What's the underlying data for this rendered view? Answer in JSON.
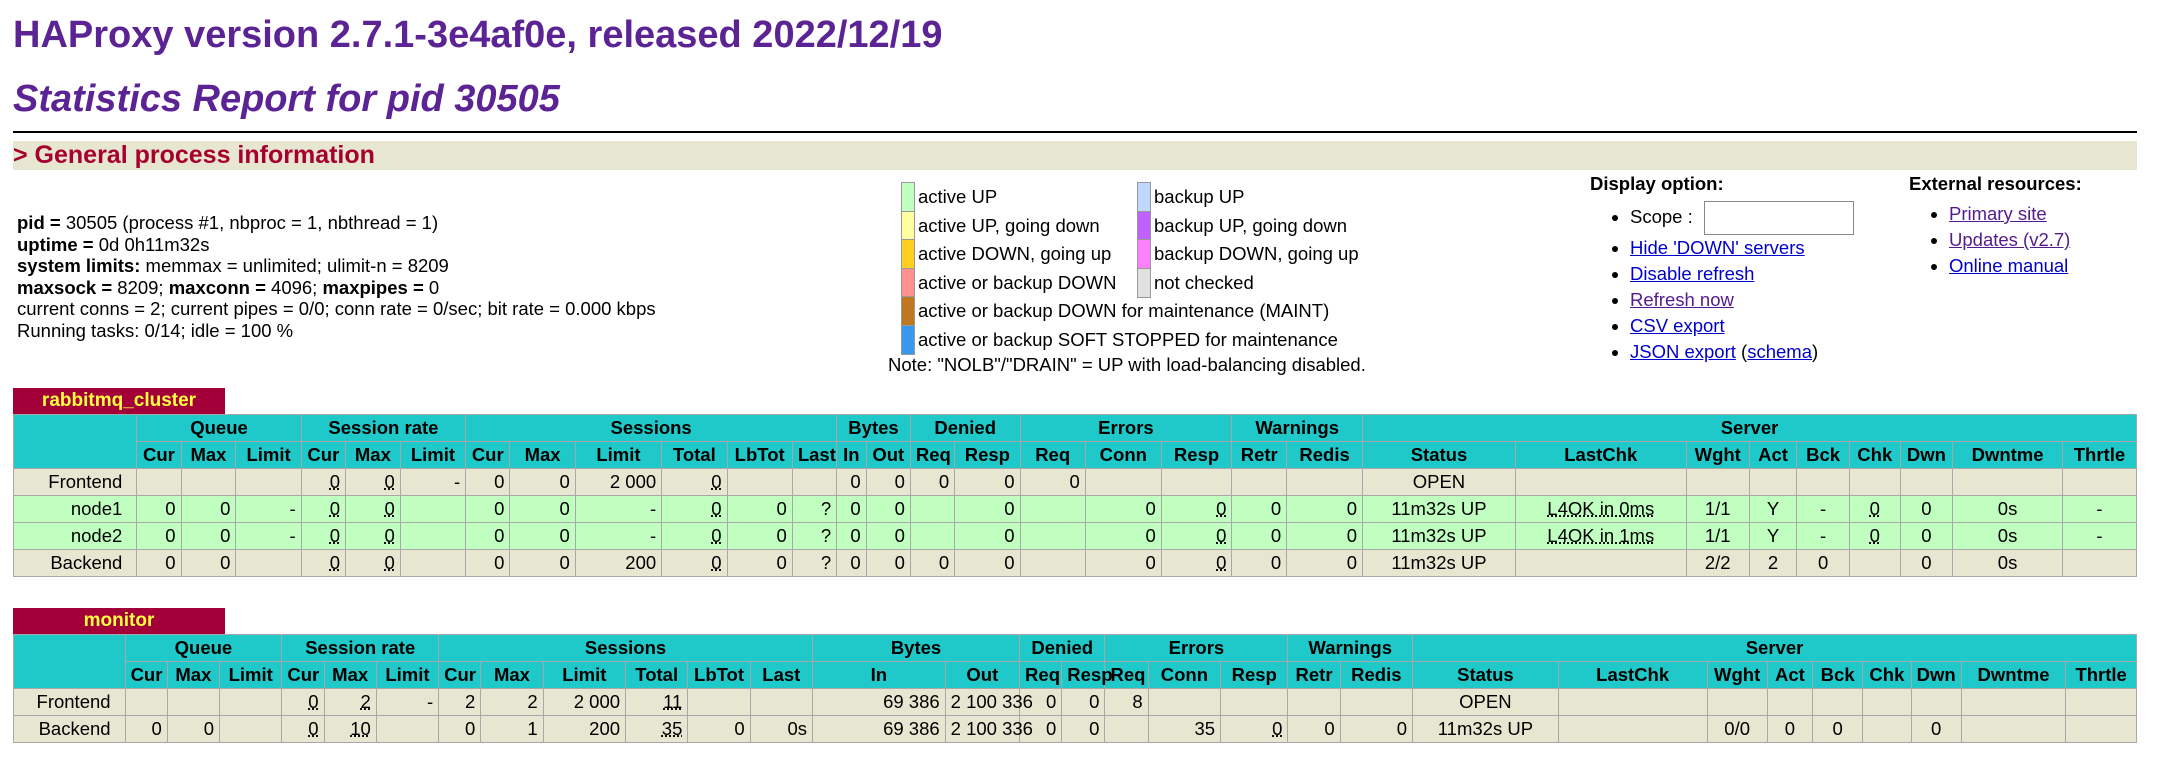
{
  "header": {
    "title": "HAProxy version 2.7.1-3e4af0e, released 2022/12/19",
    "subtitle": "Statistics Report for pid 30505",
    "section": "> General process information"
  },
  "info": {
    "pid_label": "pid = ",
    "pid_value": "30505 (process #1, nbproc = 1, nbthread = 1)",
    "uptime_label": "uptime = ",
    "uptime_value": "0d 0h11m32s",
    "syslim_label": "system limits:",
    "syslim_value": " memmax = unlimited; ulimit-n = 8209",
    "maxsock_label": "maxsock = ",
    "maxsock_value": "8209; ",
    "maxconn_label": "maxconn = ",
    "maxconn_value": "4096; ",
    "maxpipes_label": "maxpipes = ",
    "maxpipes_value": "0",
    "conns": "current conns = 2; current pipes = 0/0; conn rate = 0/sec; bit rate = 0.000 kbps",
    "tasks": "Running tasks: 0/14; idle = 100 %"
  },
  "legend": {
    "left": [
      {
        "label": "active UP",
        "color": "#c0ffc0"
      },
      {
        "label": "active UP, going down",
        "color": "#ffffa0"
      },
      {
        "label": "active DOWN, going up",
        "color": "#ffd020"
      },
      {
        "label": "active or backup DOWN",
        "color": "#ff9090"
      },
      {
        "label": "active or backup DOWN for maintenance (MAINT)",
        "color": "#c07820"
      },
      {
        "label": "active or backup SOFT STOPPED for maintenance",
        "color": "#3898f0"
      }
    ],
    "right": [
      {
        "label": "backup UP",
        "color": "#c0d8ff"
      },
      {
        "label": "backup UP, going down",
        "color": "#c060ff"
      },
      {
        "label": "backup DOWN, going up",
        "color": "#ff80ff"
      },
      {
        "label": "not checked",
        "color": "#e0e0e0"
      }
    ],
    "note": "Note: \"NOLB\"/\"DRAIN\" = UP with load-balancing disabled."
  },
  "display": {
    "title": "Display option:",
    "scope_label": "Scope : ",
    "scope_value": "",
    "links": [
      "Hide 'DOWN' servers",
      "Disable refresh",
      "Refresh now",
      "CSV export"
    ],
    "json_link": "JSON export",
    "schema_link": "schema"
  },
  "external": {
    "title": "External resources:",
    "links": [
      "Primary site",
      "Updates (v2.7)",
      "Online manual"
    ]
  },
  "proxies": [
    {
      "name": "rabbitmq_cluster",
      "groups": [
        "Queue",
        "Session rate",
        "Sessions",
        "Bytes",
        "Denied",
        "Errors",
        "Warnings",
        "Server"
      ],
      "columns": [
        "Cur",
        "Max",
        "Limit",
        "Cur",
        "Max",
        "Limit",
        "Cur",
        "Max",
        "Limit",
        "Total",
        "LbTot",
        "Last",
        "In",
        "Out",
        "Req",
        "Resp",
        "Req",
        "Conn",
        "Resp",
        "Retr",
        "Redis",
        "Status",
        "LastChk",
        "Wght",
        "Act",
        "Bck",
        "Chk",
        "Dwn",
        "Dwntme",
        "Thrtle"
      ],
      "rows": [
        {
          "name": "Frontend",
          "cells": [
            "",
            "",
            "",
            "0",
            "0",
            "-",
            "0",
            "0",
            "2 000",
            "0",
            "",
            "",
            "0",
            "0",
            "0",
            "0",
            "0",
            "",
            "",
            "",
            "",
            "OPEN",
            "",
            "",
            "",
            "",
            "",
            "",
            "",
            ""
          ]
        },
        {
          "name": "node1",
          "cells": [
            "0",
            "0",
            "-",
            "0",
            "0",
            "",
            "0",
            "0",
            "-",
            "0",
            "0",
            "?",
            "0",
            "0",
            "",
            "0",
            "",
            "0",
            "0",
            "0",
            "0",
            "11m32s UP",
            "L4OK in 0ms",
            "1/1",
            "Y",
            "-",
            "0",
            "0",
            "0s",
            "-"
          ]
        },
        {
          "name": "node2",
          "cells": [
            "0",
            "0",
            "-",
            "0",
            "0",
            "",
            "0",
            "0",
            "-",
            "0",
            "0",
            "?",
            "0",
            "0",
            "",
            "0",
            "",
            "0",
            "0",
            "0",
            "0",
            "11m32s UP",
            "L4OK in 1ms",
            "1/1",
            "Y",
            "-",
            "0",
            "0",
            "0s",
            "-"
          ]
        },
        {
          "name": "Backend",
          "cells": [
            "0",
            "0",
            "",
            "0",
            "0",
            "",
            "0",
            "0",
            "200",
            "0",
            "0",
            "?",
            "0",
            "0",
            "0",
            "0",
            "",
            "0",
            "0",
            "0",
            "0",
            "11m32s UP",
            "",
            "2/2",
            "2",
            "0",
            "",
            "0",
            "0s",
            ""
          ]
        }
      ]
    },
    {
      "name": "monitor",
      "groups": [
        "Queue",
        "Session rate",
        "Sessions",
        "Bytes",
        "Denied",
        "Errors",
        "Warnings",
        "Server"
      ],
      "columns": [
        "Cur",
        "Max",
        "Limit",
        "Cur",
        "Max",
        "Limit",
        "Cur",
        "Max",
        "Limit",
        "Total",
        "LbTot",
        "Last",
        "In",
        "Out",
        "Req",
        "Resp",
        "Req",
        "Conn",
        "Resp",
        "Retr",
        "Redis",
        "Status",
        "LastChk",
        "Wght",
        "Act",
        "Bck",
        "Chk",
        "Dwn",
        "Dwntme",
        "Thrtle"
      ],
      "rows": [
        {
          "name": "Frontend",
          "cells": [
            "",
            "",
            "",
            "0",
            "2",
            "-",
            "2",
            "2",
            "2 000",
            "11",
            "",
            "",
            "69 386",
            "2 100 336",
            "0",
            "0",
            "8",
            "",
            "",
            "",
            "",
            "OPEN",
            "",
            "",
            "",
            "",
            "",
            "",
            "",
            ""
          ]
        },
        {
          "name": "Backend",
          "cells": [
            "0",
            "0",
            "",
            "0",
            "10",
            "",
            "0",
            "1",
            "200",
            "35",
            "0",
            "0s",
            "69 386",
            "2 100 336",
            "0",
            "0",
            "",
            "35",
            "0",
            "0",
            "0",
            "11m32s UP",
            "",
            "0/0",
            "0",
            "0",
            "",
            "0",
            "",
            ""
          ]
        }
      ]
    }
  ]
}
